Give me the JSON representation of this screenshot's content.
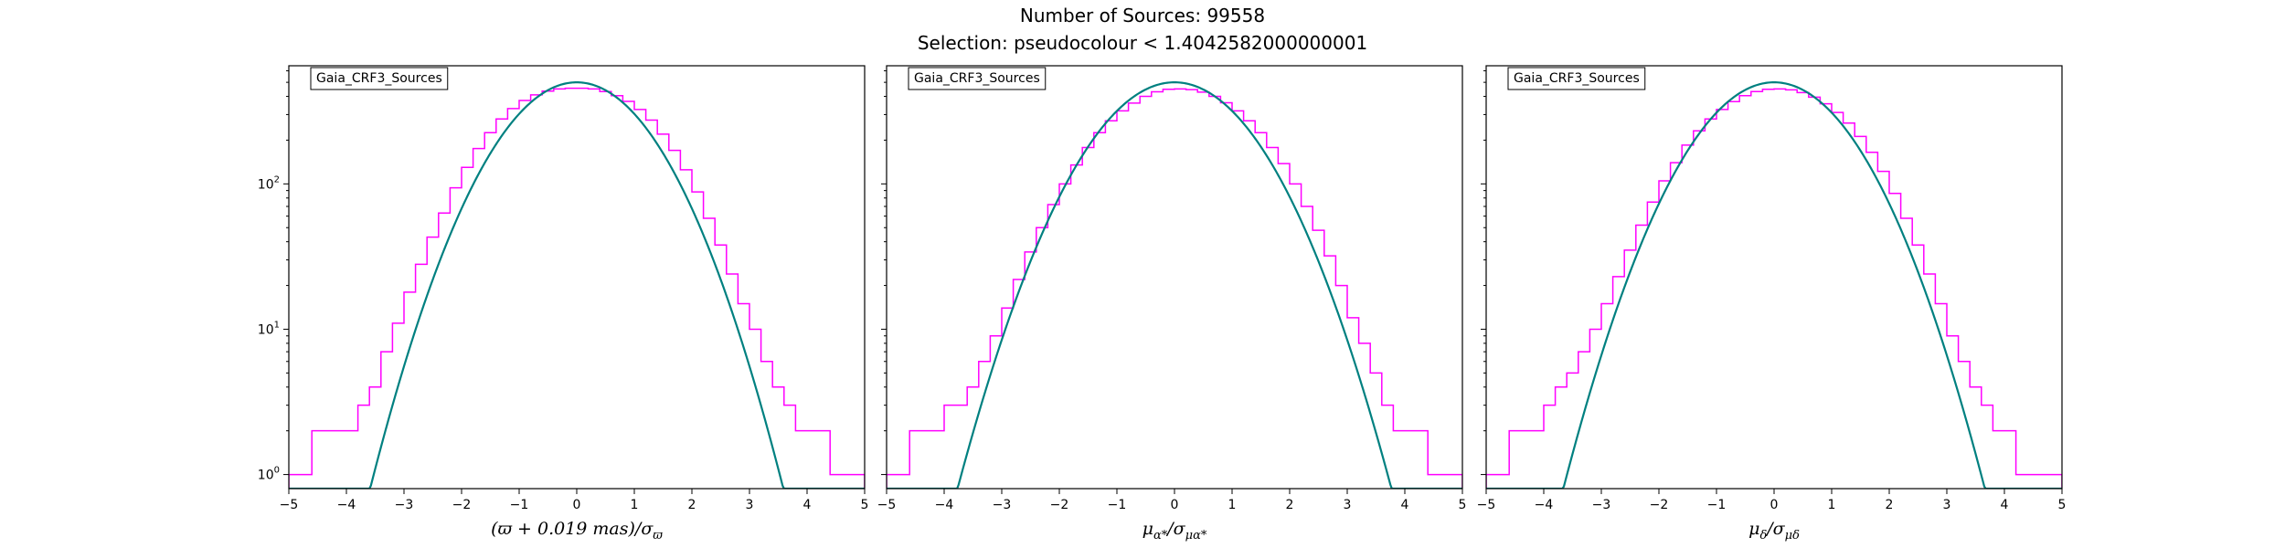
{
  "figure": {
    "title_line1": "Number of Sources: 99558",
    "title_line2": "Selection: pseudocolour < 1.4042582000000001"
  },
  "colors": {
    "histogram": "#ff00ff",
    "model_curve": "#008080",
    "axis": "#000000",
    "background": "#ffffff"
  },
  "chart_data": [
    {
      "type": "line",
      "subtype": "histogram with gaussian model curve",
      "legend": "Gaia_CRF3_Sources",
      "legend_position": "top-left",
      "xlabel": "(ϖ + 0.019 mas)/σϖ",
      "yscale": "log",
      "xlim": [
        -5,
        5
      ],
      "ylim": [
        0.8,
        650
      ],
      "x_ticks": [
        "−5",
        "−4",
        "−3",
        "−2",
        "−1",
        "0",
        "1",
        "2",
        "3",
        "4",
        "5"
      ],
      "y_ticks": [
        {
          "value": 1,
          "base": "10",
          "exp": "0"
        },
        {
          "value": 10,
          "base": "10",
          "exp": "1"
        },
        {
          "value": 100,
          "base": "10",
          "exp": "2"
        }
      ],
      "series": [
        {
          "kind": "histogram",
          "x": [
            -4.9,
            -4.7,
            -4.5,
            -4.3,
            -4.1,
            -3.9,
            -3.7,
            -3.5,
            -3.3,
            -3.1,
            -2.9,
            -2.7,
            -2.5,
            -2.3,
            -2.1,
            -1.9,
            -1.7,
            -1.5,
            -1.3,
            -1.1,
            -0.9,
            -0.7,
            -0.5,
            -0.3,
            -0.1,
            0.1,
            0.3,
            0.5,
            0.7,
            0.9,
            1.1,
            1.3,
            1.5,
            1.7,
            1.9,
            2.1,
            2.3,
            2.5,
            2.7,
            2.9,
            3.1,
            3.3,
            3.5,
            3.7,
            3.9,
            4.1,
            4.3,
            4.5,
            4.7,
            4.9
          ],
          "y": [
            1,
            1,
            2,
            2,
            2,
            2,
            3,
            4,
            7,
            11,
            18,
            28,
            43,
            63,
            94,
            130,
            175,
            225,
            280,
            330,
            375,
            410,
            435,
            450,
            455,
            455,
            450,
            432,
            405,
            370,
            325,
            275,
            220,
            170,
            125,
            88,
            58,
            38,
            24,
            15,
            10,
            6,
            4,
            3,
            2,
            2,
            2,
            1,
            1,
            1
          ]
        },
        {
          "kind": "gaussian model",
          "amplitude": 500,
          "mean": 0,
          "sigma": 1
        }
      ]
    },
    {
      "type": "line",
      "subtype": "histogram with gaussian model curve",
      "legend": "Gaia_CRF3_Sources",
      "legend_position": "top-left",
      "xlabel": "μα*/σμα*",
      "yscale": "log",
      "xlim": [
        -5,
        5
      ],
      "ylim": [
        0.8,
        650
      ],
      "x_ticks": [
        "−5",
        "−4",
        "−3",
        "−2",
        "−1",
        "0",
        "1",
        "2",
        "3",
        "4",
        "5"
      ],
      "y_ticks": [
        {
          "value": 1,
          "base": "10",
          "exp": "0"
        },
        {
          "value": 10,
          "base": "10",
          "exp": "1"
        },
        {
          "value": 100,
          "base": "10",
          "exp": "2"
        }
      ],
      "series": [
        {
          "kind": "histogram",
          "x": [
            -4.9,
            -4.7,
            -4.5,
            -4.3,
            -4.1,
            -3.9,
            -3.7,
            -3.5,
            -3.3,
            -3.1,
            -2.9,
            -2.7,
            -2.5,
            -2.3,
            -2.1,
            -1.9,
            -1.7,
            -1.5,
            -1.3,
            -1.1,
            -0.9,
            -0.7,
            -0.5,
            -0.3,
            -0.1,
            0.1,
            0.3,
            0.5,
            0.7,
            0.9,
            1.1,
            1.3,
            1.5,
            1.7,
            1.9,
            2.1,
            2.3,
            2.5,
            2.7,
            2.9,
            3.1,
            3.3,
            3.5,
            3.7,
            3.9,
            4.1,
            4.3,
            4.5,
            4.7,
            4.9
          ],
          "y": [
            1,
            1,
            2,
            2,
            2,
            3,
            3,
            4,
            6,
            9,
            14,
            22,
            34,
            50,
            72,
            100,
            135,
            178,
            225,
            272,
            318,
            360,
            400,
            430,
            448,
            450,
            445,
            428,
            400,
            362,
            318,
            272,
            225,
            178,
            138,
            100,
            70,
            48,
            32,
            20,
            12,
            8,
            5,
            3,
            2,
            2,
            2,
            1,
            1,
            1
          ]
        },
        {
          "kind": "gaussian model",
          "amplitude": 500,
          "mean": 0,
          "sigma": 1.05
        }
      ]
    },
    {
      "type": "line",
      "subtype": "histogram with gaussian model curve",
      "legend": "Gaia_CRF3_Sources",
      "legend_position": "top-left",
      "xlabel": "μδ/σμδ",
      "yscale": "log",
      "xlim": [
        -5,
        5
      ],
      "ylim": [
        0.8,
        650
      ],
      "x_ticks": [
        "−5",
        "−4",
        "−3",
        "−2",
        "−1",
        "0",
        "1",
        "2",
        "3",
        "4",
        "5"
      ],
      "y_ticks": [
        {
          "value": 1,
          "base": "10",
          "exp": "0"
        },
        {
          "value": 10,
          "base": "10",
          "exp": "1"
        },
        {
          "value": 100,
          "base": "10",
          "exp": "2"
        }
      ],
      "series": [
        {
          "kind": "histogram",
          "x": [
            -4.9,
            -4.7,
            -4.5,
            -4.3,
            -4.1,
            -3.9,
            -3.7,
            -3.5,
            -3.3,
            -3.1,
            -2.9,
            -2.7,
            -2.5,
            -2.3,
            -2.1,
            -1.9,
            -1.7,
            -1.5,
            -1.3,
            -1.1,
            -0.9,
            -0.7,
            -0.5,
            -0.3,
            -0.1,
            0.1,
            0.3,
            0.5,
            0.7,
            0.9,
            1.1,
            1.3,
            1.5,
            1.7,
            1.9,
            2.1,
            2.3,
            2.5,
            2.7,
            2.9,
            3.1,
            3.3,
            3.5,
            3.7,
            3.9,
            4.1,
            4.3,
            4.5,
            4.7,
            4.9
          ],
          "y": [
            1,
            1,
            2,
            2,
            2,
            3,
            4,
            5,
            7,
            10,
            15,
            23,
            35,
            52,
            75,
            105,
            140,
            185,
            232,
            280,
            325,
            368,
            405,
            432,
            448,
            450,
            444,
            425,
            395,
            356,
            310,
            262,
            212,
            165,
            122,
            86,
            58,
            38,
            24,
            15,
            9,
            6,
            4,
            3,
            2,
            2,
            1,
            1,
            1,
            1
          ]
        },
        {
          "kind": "gaussian model",
          "amplitude": 500,
          "mean": 0,
          "sigma": 1.02
        }
      ]
    }
  ]
}
